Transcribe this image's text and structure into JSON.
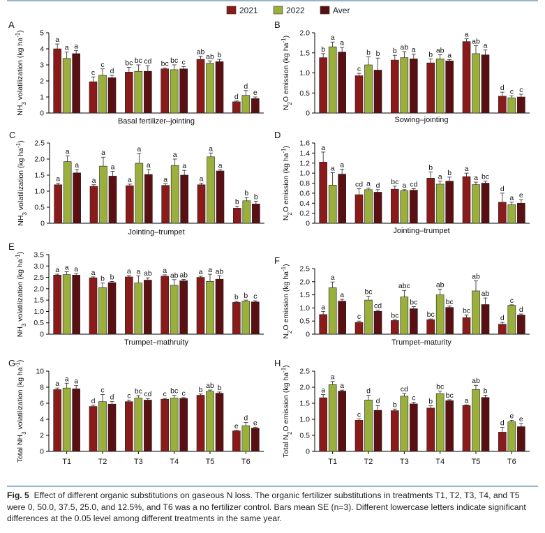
{
  "legend": [
    {
      "name": "2021",
      "color": "#8b1a1a"
    },
    {
      "name": "2022",
      "color": "#9aaf3c"
    },
    {
      "name": "Aver",
      "color": "#5a0f12"
    }
  ],
  "axis_x_ticks": [
    "T1",
    "T2",
    "T3",
    "T4",
    "T5",
    "T6"
  ],
  "chart_data": [
    {
      "id": "A",
      "type": "bar",
      "panel": "A",
      "subtitle": "Basal fertilizer–jointing",
      "ylabel": "NH3 volatilization (kg ha⁻¹)",
      "ymax": 5,
      "yticks": [
        "0",
        "1",
        "2",
        "3",
        "4",
        "5"
      ],
      "categories": [
        "T1",
        "T2",
        "T3",
        "T4",
        "T5",
        "T6"
      ],
      "series": [
        {
          "name": "2021",
          "values": [
            4.0,
            1.95,
            2.55,
            2.75,
            3.35,
            0.7
          ],
          "err": [
            0.3,
            0.3,
            0.3,
            0.05,
            0.2,
            0.05
          ],
          "letters": [
            "a",
            "c",
            "bc",
            "bc",
            "ab",
            "d"
          ]
        },
        {
          "name": "2022",
          "values": [
            3.4,
            2.35,
            2.6,
            2.7,
            3.1,
            1.1
          ],
          "err": [
            0.4,
            0.4,
            0.4,
            0.3,
            0.15,
            0.3
          ],
          "letters": [
            "a",
            "c",
            "bc",
            "bc",
            "ab",
            "d"
          ]
        },
        {
          "name": "Aver",
          "values": [
            3.7,
            2.2,
            2.6,
            2.75,
            3.2,
            0.9
          ],
          "err": [
            0.2,
            0.15,
            0.35,
            0.15,
            0.15,
            0.1
          ],
          "letters": [
            "a",
            "d",
            "cd",
            "c",
            "b",
            "e"
          ]
        }
      ]
    },
    {
      "id": "B",
      "type": "bar",
      "panel": "B",
      "subtitle": "Sowing–jointing",
      "ylabel": "N2O emission (kg ha⁻¹)",
      "ymax": 2.0,
      "yticks": [
        "0",
        "0.5",
        "1.0",
        "1.5",
        "2.0"
      ],
      "categories": [
        "T1",
        "T2",
        "T3",
        "T4",
        "T5",
        "T6"
      ],
      "series": [
        {
          "name": "2021",
          "values": [
            1.38,
            0.93,
            1.32,
            1.25,
            1.78,
            0.42
          ],
          "err": [
            0.1,
            0.06,
            0.12,
            0.1,
            0.07,
            0.1
          ],
          "letters": [
            "b",
            "c",
            "b",
            "b",
            "a",
            "d"
          ]
        },
        {
          "name": "2022",
          "values": [
            1.65,
            1.2,
            1.38,
            1.35,
            1.48,
            0.38
          ],
          "err": [
            0.12,
            0.2,
            0.15,
            0.1,
            0.2,
            0.05
          ],
          "letters": [
            "a",
            "b",
            "ab",
            "ab",
            "ab",
            "c"
          ]
        },
        {
          "name": "Aver",
          "values": [
            1.52,
            1.07,
            1.35,
            1.3,
            1.45,
            0.4
          ],
          "err": [
            0.12,
            0.3,
            0.12,
            0.03,
            0.12,
            0.07
          ],
          "letters": [
            "a",
            "b",
            "a",
            "a",
            "a",
            "c"
          ]
        }
      ]
    },
    {
      "id": "C",
      "type": "bar",
      "panel": "C",
      "subtitle": "Jointing–trumpet",
      "ylabel": "NH3 volatilization (kg ha⁻¹)",
      "ymax": 2.5,
      "yticks": [
        "0",
        "0.5",
        "1.0",
        "1.5",
        "2.0",
        "2.5"
      ],
      "categories": [
        "T1",
        "T2",
        "T3",
        "T4",
        "T5",
        "T6"
      ],
      "series": [
        {
          "name": "2021",
          "values": [
            1.2,
            1.15,
            1.17,
            1.18,
            1.2,
            0.47
          ],
          "err": [
            0.05,
            0.05,
            0.05,
            0.05,
            0.05,
            0.06
          ],
          "letters": [
            "a",
            "a",
            "a",
            "a",
            "a",
            "b"
          ]
        },
        {
          "name": "2022",
          "values": [
            1.92,
            1.78,
            1.87,
            1.8,
            2.07,
            0.7
          ],
          "err": [
            0.18,
            0.28,
            0.3,
            0.2,
            0.12,
            0.1
          ],
          "letters": [
            "a",
            "a",
            "a",
            "a",
            "a",
            "b"
          ]
        },
        {
          "name": "Aver",
          "values": [
            1.57,
            1.47,
            1.52,
            1.5,
            1.63,
            0.6
          ],
          "err": [
            0.1,
            0.15,
            0.15,
            0.15,
            0.03,
            0.08
          ],
          "letters": [
            "a",
            "a",
            "a",
            "a",
            "a",
            "b"
          ]
        }
      ]
    },
    {
      "id": "D",
      "type": "bar",
      "panel": "D",
      "subtitle": "Jointing–trumpet",
      "ylabel": "N2O emission (kg ha⁻¹)",
      "ymax": 1.6,
      "yticks": [
        "0",
        "0.2",
        "0.4",
        "0.6",
        "0.8",
        "1.0",
        "1.2",
        "1.4",
        "1.6"
      ],
      "categories": [
        "T1",
        "T2",
        "T3",
        "T4",
        "T5",
        "T6"
      ],
      "series": [
        {
          "name": "2021",
          "values": [
            1.22,
            0.57,
            0.68,
            0.9,
            0.93,
            0.42
          ],
          "err": [
            0.2,
            0.12,
            0.06,
            0.12,
            0.07,
            0.18
          ],
          "letters": [
            "a",
            "cd",
            "bc",
            "b",
            "a",
            "d"
          ]
        },
        {
          "name": "2022",
          "values": [
            0.76,
            0.67,
            0.65,
            0.78,
            0.77,
            0.37
          ],
          "err": [
            0.25,
            0.03,
            0.02,
            0.06,
            0.05,
            0.05
          ],
          "letters": [
            "a",
            "a",
            "a",
            "a",
            "a",
            "a"
          ]
        },
        {
          "name": "Aver",
          "values": [
            0.98,
            0.62,
            0.66,
            0.84,
            0.8,
            0.4
          ],
          "err": [
            0.1,
            0.05,
            0.03,
            0.08,
            0.04,
            0.07
          ],
          "letters": [
            "a",
            "d",
            "cd",
            "b",
            "bc",
            "e"
          ]
        }
      ]
    },
    {
      "id": "E",
      "type": "bar",
      "panel": "E",
      "subtitle": "Trumpet–mathruity",
      "ylabel": "NH3 volatilization (kg ha⁻¹)",
      "ymax": 3.5,
      "yticks": [
        "0",
        "0.5",
        "1.0",
        "1.5",
        "2.0",
        "2.5",
        "3.0",
        "3.5"
      ],
      "categories": [
        "T1",
        "T2",
        "T3",
        "T4",
        "T5",
        "T6"
      ],
      "series": [
        {
          "name": "2021",
          "values": [
            2.6,
            2.48,
            2.52,
            2.55,
            2.5,
            1.4
          ],
          "err": [
            0.04,
            0.04,
            0.06,
            0.06,
            0.05,
            0.04
          ],
          "letters": [
            "a",
            "a",
            "a",
            "a",
            "a",
            "b"
          ]
        },
        {
          "name": "2022",
          "values": [
            2.62,
            2.05,
            2.25,
            2.15,
            2.32,
            1.45
          ],
          "err": [
            0.13,
            0.2,
            0.32,
            0.25,
            0.32,
            0.05
          ],
          "letters": [
            "a",
            "b",
            "a",
            "ab",
            "a",
            "b"
          ]
        },
        {
          "name": "Aver",
          "values": [
            2.6,
            2.27,
            2.38,
            2.35,
            2.42,
            1.42
          ],
          "err": [
            0.07,
            0.05,
            0.1,
            0.06,
            0.15,
            0.05
          ],
          "letters": [
            "a",
            "b",
            "ab",
            "ab",
            "ab",
            "c"
          ]
        }
      ]
    },
    {
      "id": "F",
      "type": "bar",
      "panel": "F",
      "subtitle": "Trumpet–maturity",
      "ylabel": "N2O emission (kg ha⁻¹)",
      "ymax": 2.5,
      "yticks": [
        "0",
        "0.5",
        "1.0",
        "1.5",
        "2.0",
        "2.5"
      ],
      "categories": [
        "T1",
        "T2",
        "T3",
        "T4",
        "T5",
        "T6"
      ],
      "series": [
        {
          "name": "2021",
          "values": [
            0.75,
            0.45,
            0.52,
            0.55,
            0.63,
            0.38
          ],
          "err": [
            0.12,
            0.05,
            0.03,
            0.03,
            0.1,
            0.07
          ],
          "letters": [
            "a",
            "c",
            "bc",
            "bc",
            "bc",
            "d"
          ]
        },
        {
          "name": "2022",
          "values": [
            1.77,
            1.3,
            1.42,
            1.5,
            1.65,
            1.1
          ],
          "err": [
            0.22,
            0.15,
            0.25,
            0.22,
            0.38,
            0.02
          ],
          "letters": [
            "a",
            "bc",
            "abc",
            "ab",
            "ab",
            "c"
          ]
        },
        {
          "name": "Aver",
          "values": [
            1.26,
            0.87,
            0.97,
            1.02,
            1.13,
            0.73
          ],
          "err": [
            0.07,
            0.05,
            0.08,
            0.05,
            0.25,
            0.04
          ],
          "letters": [
            "a",
            "cd",
            "bc",
            "bc",
            "ab",
            "d"
          ]
        }
      ]
    },
    {
      "id": "G",
      "type": "bar",
      "panel": "G",
      "subtitle": "",
      "ylabel": "Total NH3 volatilization (kg ha⁻¹)",
      "ymax": 10,
      "yticks": [
        "0",
        "2",
        "4",
        "6",
        "8",
        "10"
      ],
      "categories": [
        "T1",
        "T2",
        "T3",
        "T4",
        "T5",
        "T6"
      ],
      "series": [
        {
          "name": "2021",
          "values": [
            7.7,
            5.6,
            6.2,
            6.5,
            7.0,
            2.55
          ],
          "err": [
            0.2,
            0.15,
            0.2,
            0.1,
            0.15,
            0.08
          ],
          "letters": [
            "a",
            "d",
            "c",
            "c",
            "b",
            "e"
          ]
        },
        {
          "name": "2022",
          "values": [
            7.9,
            6.2,
            6.65,
            6.65,
            7.5,
            3.2
          ],
          "err": [
            0.6,
            0.9,
            0.3,
            0.35,
            0.15,
            0.4
          ],
          "letters": [
            "a",
            "c",
            "bc",
            "bc",
            "ab",
            "d"
          ]
        },
        {
          "name": "Aver",
          "values": [
            7.8,
            5.9,
            6.4,
            6.6,
            7.25,
            2.9
          ],
          "err": [
            0.4,
            0.3,
            0.2,
            0.1,
            0.15,
            0.12
          ],
          "letters": [
            "a",
            "d",
            "cd",
            "c",
            "b",
            "e"
          ]
        }
      ]
    },
    {
      "id": "H",
      "type": "bar",
      "panel": "H",
      "subtitle": "",
      "ylabel": "Total N2O emission (kg ha⁻¹)",
      "ymax": 2.5,
      "yticks": [
        "0",
        "0.5",
        "1.0",
        "1.5",
        "2.0",
        "2.5"
      ],
      "categories": [
        "T1",
        "T2",
        "T3",
        "T4",
        "T5",
        "T6"
      ],
      "series": [
        {
          "name": "2021",
          "values": [
            1.67,
            0.97,
            1.27,
            1.35,
            1.43,
            0.6
          ],
          "err": [
            0.1,
            0.04,
            0.05,
            0.07,
            0.02,
            0.15
          ],
          "letters": [
            "a",
            "c",
            "b",
            "b",
            "a",
            "d"
          ]
        },
        {
          "name": "2022",
          "values": [
            2.08,
            1.6,
            1.72,
            1.8,
            1.93,
            0.92
          ],
          "err": [
            0.1,
            0.15,
            0.08,
            0.08,
            0.13,
            0.05
          ],
          "letters": [
            "a",
            "d",
            "cd",
            "bc",
            "ab",
            "e"
          ]
        },
        {
          "name": "Aver",
          "values": [
            1.88,
            1.28,
            1.48,
            1.58,
            1.68,
            0.77
          ],
          "err": [
            0.03,
            0.15,
            0.05,
            0.03,
            0.07,
            0.1
          ],
          "letters": [
            "a",
            "d",
            "c",
            "bc",
            "b",
            "e"
          ]
        }
      ]
    }
  ],
  "caption": {
    "label": "Fig. 5",
    "text": "Effect of different organic substitutions on gaseous N loss.  The organic fertilizer substitutions in treatments T1, T2, T3, T4, and T5 were 0, 50.0, 37.5, 25.0, and 12.5%, and T6 was a no fertilizer control.  Bars mean SE (n=3).  Different lowercase letters indicate significant differences at the 0.05 level among different treatments in the same year."
  }
}
